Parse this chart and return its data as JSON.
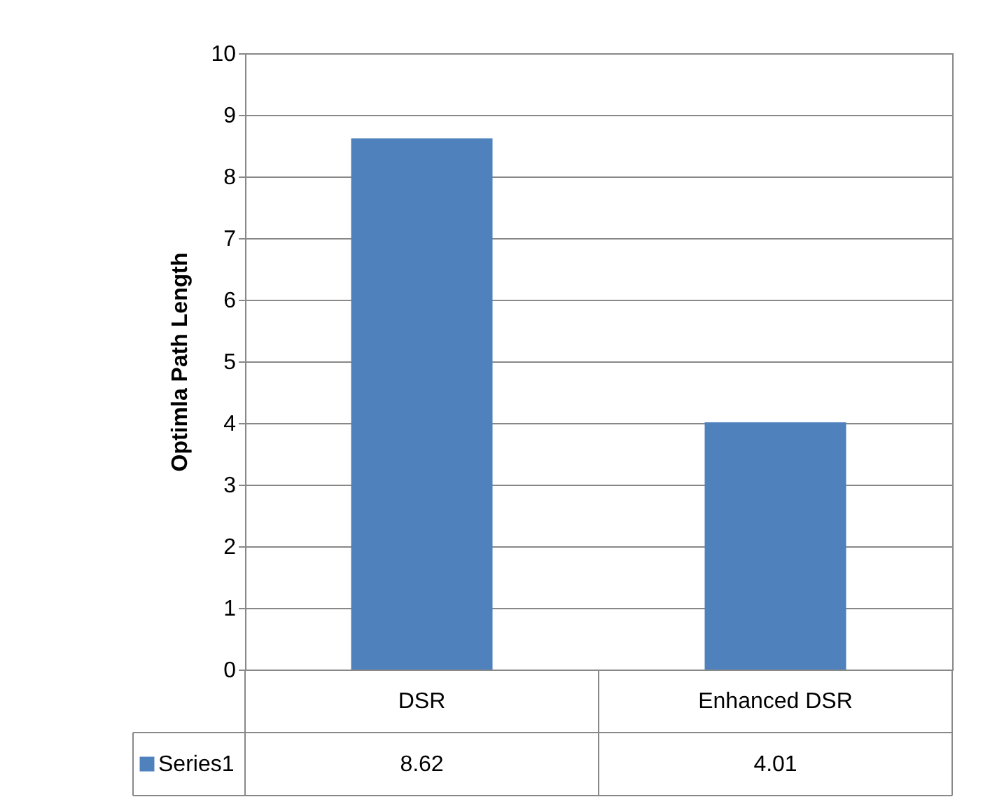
{
  "chart_data": {
    "type": "bar",
    "ylabel": "Optimla Path Length",
    "categories": [
      "DSR",
      "Enhanced DSR"
    ],
    "series": [
      {
        "name": "Series1",
        "color": "#4f81bd",
        "values": [
          8.62,
          4.01
        ]
      }
    ],
    "ylim": [
      0,
      10
    ],
    "yticks": [
      0,
      1,
      2,
      3,
      4,
      5,
      6,
      7,
      8,
      9,
      10
    ],
    "grid": "y",
    "legend": "bottom",
    "data_labels": true
  }
}
